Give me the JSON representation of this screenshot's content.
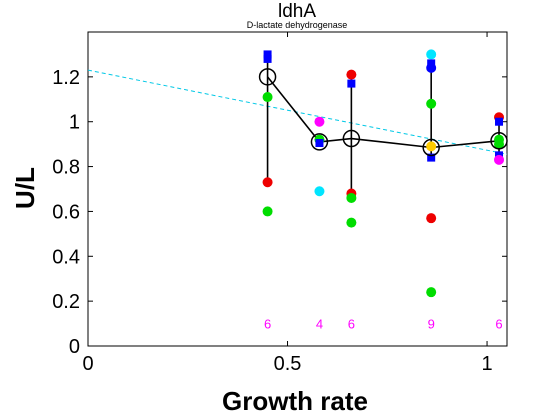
{
  "chart_data": {
    "type": "scatter",
    "title": "ldhA",
    "subtitle": "D-lactate dehydrogenase",
    "xlabel": "Growth rate",
    "ylabel": "U/L",
    "xlim": [
      0,
      1.05
    ],
    "ylim": [
      0,
      1.4
    ],
    "xticks": [
      "0",
      "0.5",
      "1"
    ],
    "yticks": [
      "0",
      "0.2",
      "0.4",
      "0.6",
      "0.8",
      "1",
      "1.2"
    ],
    "grid": false,
    "mean_line": {
      "x": [
        0.45,
        0.58,
        0.66,
        0.86,
        1.03
      ],
      "y": [
        1.2,
        0.91,
        0.925,
        0.885,
        0.915
      ]
    },
    "mean_markers": [
      {
        "x": 0.45,
        "y": 1.2
      },
      {
        "x": 0.58,
        "y": 0.91
      },
      {
        "x": 0.66,
        "y": 0.925
      },
      {
        "x": 0.86,
        "y": 0.885
      },
      {
        "x": 1.03,
        "y": 0.915
      }
    ],
    "vertical_bars": [
      {
        "x": 0.45,
        "ymin": 0.73,
        "ymax": 1.3
      },
      {
        "x": 0.66,
        "ymin": 0.68,
        "ymax": 1.2
      },
      {
        "x": 0.86,
        "ymin": 0.84,
        "ymax": 1.24
      },
      {
        "x": 1.03,
        "ymin": 0.85,
        "ymax": 1.0
      }
    ],
    "trend_line": {
      "color": "#00c8e6",
      "x": [
        0,
        1.05
      ],
      "y": [
        1.23,
        0.855
      ]
    },
    "points": [
      {
        "x": 0.45,
        "y": 1.3,
        "color": "#0000ff",
        "shape": "square"
      },
      {
        "x": 0.45,
        "y": 1.28,
        "color": "#0000ff",
        "shape": "square"
      },
      {
        "x": 0.45,
        "y": 1.11,
        "color": "#00dd00",
        "shape": "circle"
      },
      {
        "x": 0.45,
        "y": 0.73,
        "color": "#ee0000",
        "shape": "circle"
      },
      {
        "x": 0.45,
        "y": 0.6,
        "color": "#00dd00",
        "shape": "circle"
      },
      {
        "x": 0.58,
        "y": 1.0,
        "color": "#ff00ff",
        "shape": "circle"
      },
      {
        "x": 0.58,
        "y": 0.92,
        "color": "#00dd00",
        "shape": "circle"
      },
      {
        "x": 0.58,
        "y": 0.905,
        "color": "#0000ff",
        "shape": "square"
      },
      {
        "x": 0.58,
        "y": 0.69,
        "color": "#00e5ff",
        "shape": "circle"
      },
      {
        "x": 0.66,
        "y": 1.21,
        "color": "#ee0000",
        "shape": "circle"
      },
      {
        "x": 0.66,
        "y": 1.17,
        "color": "#0000ff",
        "shape": "square"
      },
      {
        "x": 0.66,
        "y": 0.68,
        "color": "#ee0000",
        "shape": "circle"
      },
      {
        "x": 0.66,
        "y": 0.66,
        "color": "#00dd00",
        "shape": "circle"
      },
      {
        "x": 0.66,
        "y": 0.55,
        "color": "#00dd00",
        "shape": "circle"
      },
      {
        "x": 0.86,
        "y": 1.3,
        "color": "#00e5ff",
        "shape": "circle"
      },
      {
        "x": 0.86,
        "y": 1.26,
        "color": "#0000ff",
        "shape": "square"
      },
      {
        "x": 0.86,
        "y": 1.24,
        "color": "#0000ff",
        "shape": "circle"
      },
      {
        "x": 0.86,
        "y": 1.08,
        "color": "#00dd00",
        "shape": "circle"
      },
      {
        "x": 0.86,
        "y": 0.89,
        "color": "#ffcc00",
        "shape": "circle"
      },
      {
        "x": 0.86,
        "y": 0.84,
        "color": "#0000ff",
        "shape": "square"
      },
      {
        "x": 0.86,
        "y": 0.57,
        "color": "#ee0000",
        "shape": "circle"
      },
      {
        "x": 0.86,
        "y": 0.24,
        "color": "#00dd00",
        "shape": "circle"
      },
      {
        "x": 1.03,
        "y": 1.02,
        "color": "#ee0000",
        "shape": "circle"
      },
      {
        "x": 1.03,
        "y": 1.0,
        "color": "#0000ff",
        "shape": "square"
      },
      {
        "x": 1.03,
        "y": 0.92,
        "color": "#00dd00",
        "shape": "circle"
      },
      {
        "x": 1.03,
        "y": 0.9,
        "color": "#00dd00",
        "shape": "circle"
      },
      {
        "x": 1.03,
        "y": 0.85,
        "color": "#0000ff",
        "shape": "square"
      },
      {
        "x": 1.03,
        "y": 0.83,
        "color": "#ff00ff",
        "shape": "circle"
      }
    ],
    "count_labels": {
      "y": 0.1,
      "color": "#ff00ff",
      "items": [
        {
          "x": 0.45,
          "text": "6"
        },
        {
          "x": 0.58,
          "text": "4"
        },
        {
          "x": 0.66,
          "text": "6"
        },
        {
          "x": 0.86,
          "text": "9"
        },
        {
          "x": 1.03,
          "text": "6"
        }
      ]
    }
  }
}
